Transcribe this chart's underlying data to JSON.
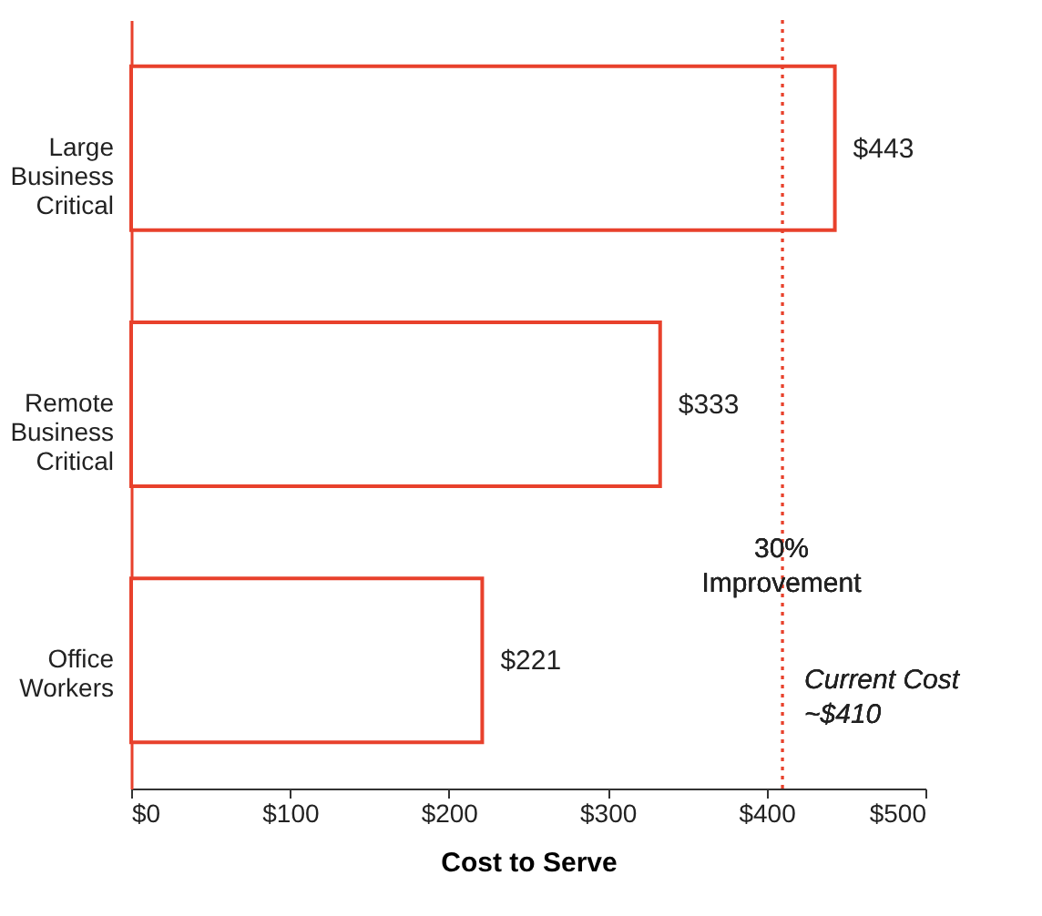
{
  "chart_data": {
    "type": "bar",
    "orientation": "horizontal",
    "categories": [
      "Large Business Critical",
      "Remote Business Critical",
      "Office Workers"
    ],
    "values": [
      443,
      333,
      221
    ],
    "color": "#e8412c",
    "value_labels": [
      "$443",
      "$333",
      "$221"
    ],
    "xlim": [
      0,
      500
    ],
    "xticks": [
      {
        "value": 0,
        "label": "$0"
      },
      {
        "value": 100,
        "label": "$100"
      },
      {
        "value": 200,
        "label": "$200"
      },
      {
        "value": 300,
        "label": "$300"
      },
      {
        "value": 400,
        "label": "$400"
      },
      {
        "value": 500,
        "label": "$500"
      }
    ],
    "xlabel": "Cost to Serve",
    "grid": false,
    "ref_lines": [
      {
        "axis": "x",
        "value": 410,
        "label": "Current Cost ~$410",
        "color": "#e8412c",
        "line_style": "dotted"
      }
    ],
    "annotations": [
      "30% Improvement"
    ]
  }
}
